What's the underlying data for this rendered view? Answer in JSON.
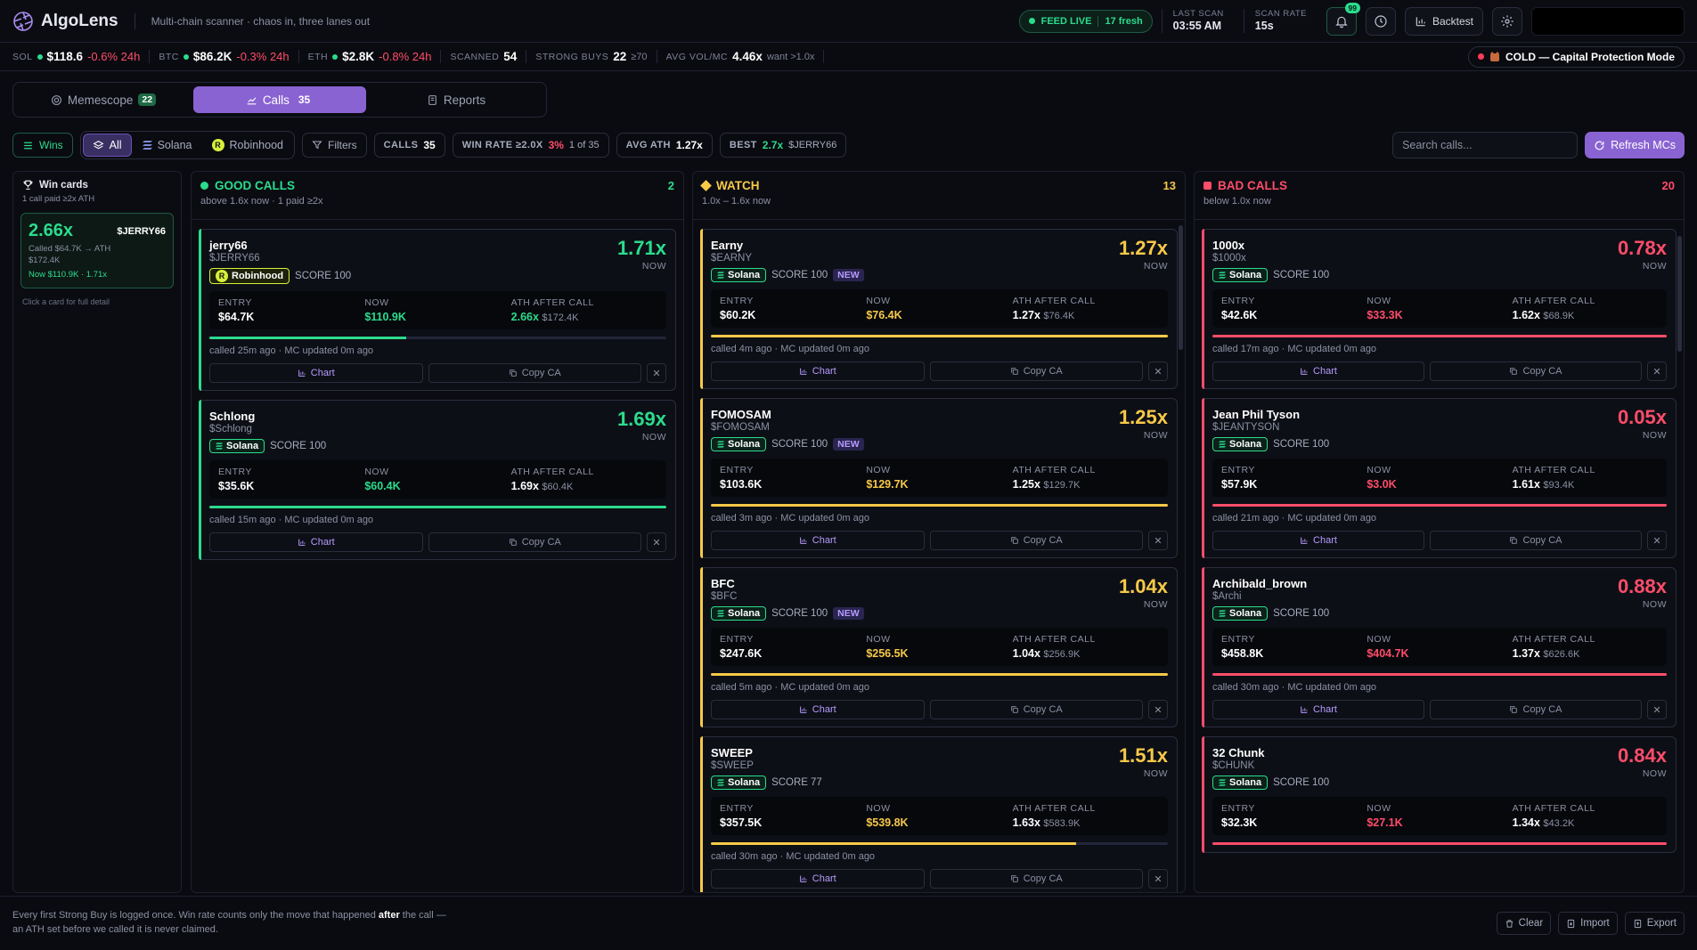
{
  "header": {
    "brand": "AlgoLens",
    "tagline": "Multi-chain scanner · chaos in, three lanes out",
    "feed_live": "FEED LIVE",
    "fresh": "17 fresh",
    "last_scan_label": "LAST SCAN",
    "last_scan": "03:55 AM",
    "scan_rate_label": "SCAN RATE",
    "scan_rate": "15s",
    "alerts": "99",
    "backtest": "Backtest"
  },
  "ticker": {
    "sol_label": "SOL",
    "sol": "$118.6",
    "sol_chg": "-0.6% 24h",
    "btc_label": "BTC",
    "btc": "$86.2K",
    "btc_chg": "-0.3% 24h",
    "eth_label": "ETH",
    "eth": "$2.8K",
    "eth_chg": "-0.8% 24h",
    "scanned_label": "SCANNED",
    "scanned": "54",
    "strong_label": "STRONG BUYS",
    "strong": "22",
    "strong_sub": "≥70",
    "vol_label": "AVG VOL/MC",
    "vol": "4.46x",
    "vol_sub": "want >1.0x",
    "mode": "COLD — Capital Protection Mode"
  },
  "tabs": [
    {
      "label": "Memescope",
      "count": "22"
    },
    {
      "label": "Calls",
      "count": "35"
    },
    {
      "label": "Reports"
    }
  ],
  "filters": {
    "wins": "Wins",
    "all": "All",
    "solana": "Solana",
    "robinhood": "Robinhood",
    "filters": "Filters",
    "calls_label": "CALLS",
    "calls": "35",
    "winrate_label": "WIN RATE ≥2.0X",
    "winrate": "3%",
    "winrate_sub": "1 of 35",
    "avgath_label": "AVG ATH",
    "avgath": "1.27x",
    "best_label": "BEST",
    "best": "2.7x",
    "best_sym": "$JERRY66",
    "search_placeholder": "Search calls...",
    "refresh": "Refresh MCs"
  },
  "wincol": {
    "title": "Win cards",
    "sub": "1 call paid ≥2x ATH",
    "card": {
      "mult": "2.66x",
      "sym": "$JERRY66",
      "line1": "Called $64.7K → ATH",
      "line2": "$172.4K",
      "line3": "Now $110.9K · 1.71x"
    },
    "hint": "Click a card for full detail"
  },
  "labels": {
    "now": "NOW",
    "entry": "ENTRY",
    "ath": "ATH AFTER CALL",
    "chart": "Chart",
    "copy": "Copy CA",
    "score": "SCORE",
    "new": "NEW"
  },
  "good": {
    "title": "GOOD CALLS",
    "sub": "above 1.6x now · 1 paid ≥2x",
    "count": "2",
    "cards": [
      {
        "name": "jerry66",
        "sym": "$JERRY66",
        "chain": "Robinhood",
        "score": "100",
        "isnew": false,
        "mult": "1.71x",
        "entry": "$64.7K",
        "now": "$110.9K",
        "ath_x": "2.66x",
        "ath": "$172.4K",
        "meta": "called 25m ago · MC updated 0m ago",
        "bar": 0.43
      },
      {
        "name": "Schlong",
        "sym": "$Schlong",
        "chain": "Solana",
        "score": "100",
        "isnew": false,
        "mult": "1.69x",
        "entry": "$35.6K",
        "now": "$60.4K",
        "ath_x": "1.69x",
        "ath": "$60.4K",
        "meta": "called 15m ago · MC updated 0m ago",
        "bar": 1
      }
    ]
  },
  "watch": {
    "title": "WATCH",
    "sub": "1.0x – 1.6x now",
    "count": "13",
    "cards": [
      {
        "name": "Earny",
        "sym": "$EARNY",
        "chain": "Solana",
        "score": "100",
        "isnew": true,
        "mult": "1.27x",
        "entry": "$60.2K",
        "now": "$76.4K",
        "ath_x": "1.27x",
        "ath": "$76.4K",
        "meta": "called 4m ago · MC updated 0m ago",
        "bar": 1
      },
      {
        "name": "FOMOSAM",
        "sym": "$FOMOSAM",
        "chain": "Solana",
        "score": "100",
        "isnew": true,
        "mult": "1.25x",
        "entry": "$103.6K",
        "now": "$129.7K",
        "ath_x": "1.25x",
        "ath": "$129.7K",
        "meta": "called 3m ago · MC updated 0m ago",
        "bar": 1
      },
      {
        "name": "BFC",
        "sym": "$BFC",
        "chain": "Solana",
        "score": "100",
        "isnew": true,
        "mult": "1.04x",
        "entry": "$247.6K",
        "now": "$256.5K",
        "ath_x": "1.04x",
        "ath": "$256.9K",
        "meta": "called 5m ago · MC updated 0m ago",
        "bar": 1
      },
      {
        "name": "SWEEP",
        "sym": "$SWEEP",
        "chain": "Solana",
        "score": "77",
        "isnew": false,
        "mult": "1.51x",
        "entry": "$357.5K",
        "now": "$539.8K",
        "ath_x": "1.63x",
        "ath": "$583.9K",
        "meta": "called 30m ago · MC updated 0m ago",
        "bar": 0.8
      }
    ]
  },
  "bad": {
    "title": "BAD CALLS",
    "sub": "below 1.0x now",
    "count": "20",
    "cards": [
      {
        "name": "1000x",
        "sym": "$1000x",
        "chain": "Solana",
        "score": "100",
        "isnew": false,
        "mult": "0.78x",
        "entry": "$42.6K",
        "now": "$33.3K",
        "ath_x": "1.62x",
        "ath": "$68.9K",
        "meta": "called 17m ago · MC updated 0m ago",
        "bar": 1
      },
      {
        "name": "Jean Phil Tyson",
        "sym": "$JEANTYSON",
        "chain": "Solana",
        "score": "100",
        "isnew": false,
        "mult": "0.05x",
        "entry": "$57.9K",
        "now": "$3.0K",
        "ath_x": "1.61x",
        "ath": "$93.4K",
        "meta": "called 21m ago · MC updated 0m ago",
        "bar": 1
      },
      {
        "name": "Archibald_brown",
        "sym": "$Archi",
        "chain": "Solana",
        "score": "100",
        "isnew": false,
        "mult": "0.88x",
        "entry": "$458.8K",
        "now": "$404.7K",
        "ath_x": "1.37x",
        "ath": "$626.6K",
        "meta": "called 30m ago · MC updated 0m ago",
        "bar": 1
      },
      {
        "name": "32 Chunk",
        "sym": "$CHUNK",
        "chain": "Solana",
        "score": "100",
        "isnew": false,
        "mult": "0.84x",
        "entry": "$32.3K",
        "now": "$27.1K",
        "ath_x": "1.34x",
        "ath": "$43.2K",
        "meta": "",
        "bar": 1
      }
    ]
  },
  "footer": {
    "note_a": "Every first Strong Buy is logged once. Win rate counts only the move that happened ",
    "note_b": "after",
    "note_c": " the call — an ATH set before we called it is never claimed.",
    "clear": "Clear",
    "import": "Import",
    "export": "Export"
  },
  "colors": {
    "green": "#2bdc8d",
    "yellow": "#f7c948",
    "red": "#ff4d6a",
    "accent": "#8a63d2"
  }
}
